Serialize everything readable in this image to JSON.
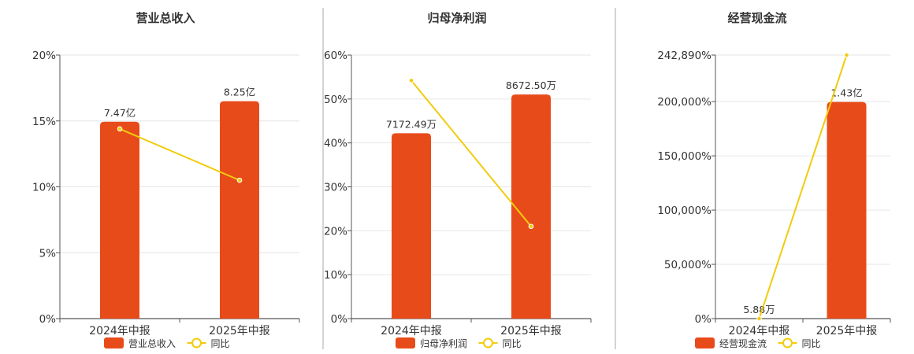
{
  "chart_data": [
    {
      "type": "bar+line",
      "title": "营业总收入",
      "categories": [
        "2024年中报",
        "2025年中报"
      ],
      "bar_series": {
        "name": "营业总收入",
        "values": [
          7.47,
          8.25
        ],
        "labels": [
          "7.47亿",
          "8.25亿"
        ],
        "unit": "亿"
      },
      "line_series": {
        "name": "同比",
        "values": [
          14.4,
          10.5
        ],
        "unit": "%"
      },
      "ylim": [
        0,
        20
      ],
      "yticks": [
        0,
        5,
        10,
        15,
        20
      ],
      "ytick_labels": [
        "0%",
        "5%",
        "10%",
        "15%",
        "20%"
      ],
      "bar_axis_max": 10.0,
      "grid": true,
      "legend_position": "bottom"
    },
    {
      "type": "bar+line",
      "title": "归母净利润",
      "categories": [
        "2024年中报",
        "2025年中报"
      ],
      "bar_series": {
        "name": "归母净利润",
        "values": [
          7172.49,
          8672.5
        ],
        "labels": [
          "7172.49万",
          "8672.50万"
        ],
        "unit": "万"
      },
      "line_series": {
        "name": "同比",
        "values": [
          54.2,
          21.0
        ],
        "unit": "%"
      },
      "ylim": [
        0,
        60
      ],
      "yticks": [
        0,
        10,
        20,
        30,
        40,
        50,
        60
      ],
      "ytick_labels": [
        "0%",
        "10%",
        "20%",
        "30%",
        "40%",
        "50%",
        "60%"
      ],
      "bar_axis_max": 10200,
      "grid": true,
      "legend_position": "bottom"
    },
    {
      "type": "bar+line",
      "title": "经营现金流",
      "categories": [
        "2024年中报",
        "2025年中报"
      ],
      "bar_series": {
        "name": "经营现金流",
        "values": [
          0.000588,
          1.43
        ],
        "labels": [
          "5.88万",
          "1.43亿"
        ],
        "unit": "亿"
      },
      "line_series": {
        "name": "同比",
        "values": [
          0,
          242890
        ],
        "unit": "%"
      },
      "ylim": [
        0,
        242890
      ],
      "yticks": [
        0,
        50000,
        100000,
        150000,
        200000,
        242890
      ],
      "ytick_labels": [
        "0%",
        "50,000%",
        "100,000%",
        "150,000%",
        "200,000%",
        "242,890%"
      ],
      "bar_axis_max": 1.74,
      "grid": true,
      "legend_position": "bottom"
    }
  ],
  "colors": {
    "bar": "#E84B1A",
    "line": "#F2CB0D",
    "axis": "#555555",
    "grid": "#e6e6e6",
    "separator": "#aaaaaa",
    "text": "#333333"
  }
}
